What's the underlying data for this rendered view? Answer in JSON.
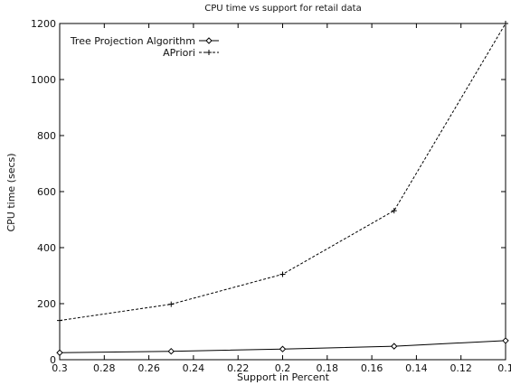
{
  "chart_data": {
    "type": "line",
    "title": "CPU time vs support for retail data",
    "xlabel": "Support in Percent",
    "ylabel": "CPU time (secs)",
    "x": [
      0.3,
      0.25,
      0.2,
      0.15,
      0.1
    ],
    "x_reversed": true,
    "xlim": [
      0.3,
      0.1
    ],
    "ylim": [
      0,
      1200
    ],
    "xticks": [
      0.3,
      0.28,
      0.26,
      0.24,
      0.22,
      0.2,
      0.18,
      0.16,
      0.14,
      0.12,
      0.1
    ],
    "xtick_labels": [
      "0.3",
      "0.28",
      "0.26",
      "0.24",
      "0.22",
      "0.2",
      "0.18",
      "0.16",
      "0.14",
      "0.12",
      "0.1"
    ],
    "yticks": [
      0,
      200,
      400,
      600,
      800,
      1000,
      1200
    ],
    "ytick_labels": [
      "0",
      "200",
      "400",
      "600",
      "800",
      "1000",
      "1200"
    ],
    "grid": false,
    "legend_position": "top-left",
    "series": [
      {
        "name": "Tree Projection Algorithm",
        "values": [
          25,
          30,
          38,
          48,
          68
        ],
        "marker": "diamond",
        "line_style": "solid",
        "color": "#000000"
      },
      {
        "name": "APriori",
        "values": [
          140,
          198,
          305,
          532,
          1200
        ],
        "marker": "plus",
        "line_style": "dashed",
        "color": "#000000"
      }
    ]
  }
}
